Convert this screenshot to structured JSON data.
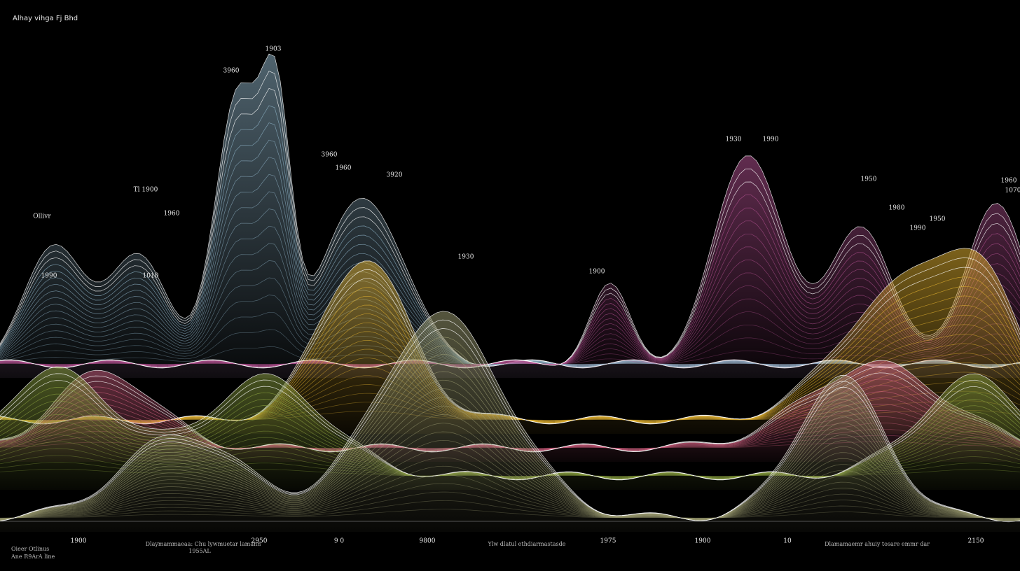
{
  "title": "Alhay vihga Fj Bhd",
  "peak_labels": [
    "1903",
    "3960",
    "1930",
    "1990",
    "1950",
    "1980",
    "1990",
    "1950",
    "1960",
    "1070",
    "1930",
    "1900",
    "Tl 1900",
    "1960",
    "3960",
    "3920",
    "1990",
    "1010",
    "Ollivr",
    "1960"
  ],
  "axis_labels": [
    "1900",
    "2950",
    "9 0",
    "9800",
    "1975",
    "1900",
    "10",
    "2150"
  ],
  "captions": [
    "Dlaymammaeaa: Chu lywmuetar lamann",
    "1955AL",
    "Ylw dlatul ethdiarmastasde",
    "Dlamamaemr ahuiy tosare emmr dar",
    "Oieer Otlinus",
    "Ane R9ArA line"
  ]
}
